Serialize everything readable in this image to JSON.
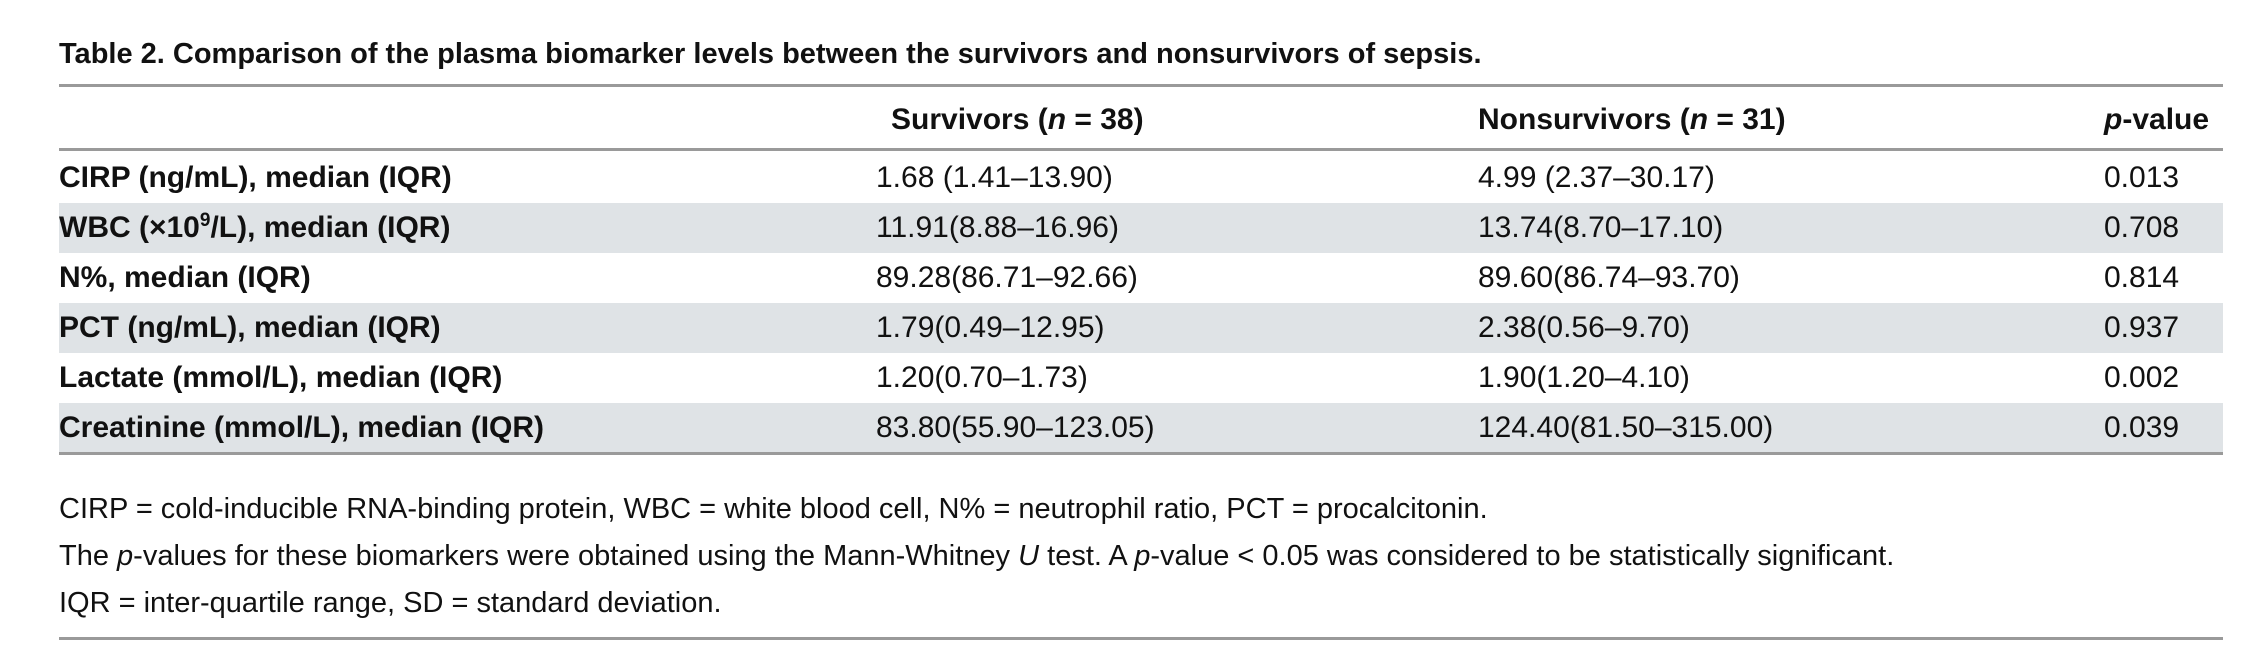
{
  "caption": "Table 2.  Comparison of the plasma biomarker levels between the survivors and nonsurvivors of sepsis.",
  "header": {
    "survivors_prefix": "Survivors (",
    "survivors_n": "n",
    "survivors_suffix": " = 38)",
    "nonsurvivors_prefix": "Nonsurvivors (",
    "nonsurvivors_n": "n",
    "nonsurvivors_suffix": " = 31)",
    "pvalue_p": "p",
    "pvalue_suffix": "-value"
  },
  "rows": [
    {
      "label": "CIRP (ng/mL), median (IQR)",
      "survivors": "1.68 (1.41–13.90)",
      "nonsurvivors": "4.99 (2.37–30.17)",
      "p": "0.013"
    },
    {
      "label_pre": "WBC (×10",
      "label_sup": "9",
      "label_post": "/L), median (IQR)",
      "survivors": "11.91(8.88–16.96)",
      "nonsurvivors": "13.74(8.70–17.10)",
      "p": "0.708"
    },
    {
      "label": "N%, median (IQR)",
      "survivors": "89.28(86.71–92.66)",
      "nonsurvivors": "89.60(86.74–93.70)",
      "p": "0.814"
    },
    {
      "label": "PCT (ng/mL), median (IQR)",
      "survivors": "1.79(0.49–12.95)",
      "nonsurvivors": "2.38(0.56–9.70)",
      "p": "0.937"
    },
    {
      "label": "Lactate (mmol/L), median (IQR)",
      "survivors": "1.20(0.70–1.73)",
      "nonsurvivors": "1.90(1.20–4.10)",
      "p": "0.002"
    },
    {
      "label": "Creatinine (mmol/L), median (IQR)",
      "survivors": "83.80(55.90–123.05)",
      "nonsurvivors": "124.40(81.50–315.00)",
      "p": "0.039"
    }
  ],
  "notes": {
    "abbrev": "CIRP = cold-inducible RNA-binding protein, WBC = white blood cell, N% = neutrophil ratio, PCT = procalcitonin.",
    "stats_1": "The ",
    "stats_p1": "p",
    "stats_2": "-values for these biomarkers were obtained using the Mann-Whitney ",
    "stats_u": "U",
    "stats_3": " test. A ",
    "stats_p2": "p",
    "stats_4": "-value < 0.05 was considered to be statistically significant.",
    "iqr": "IQR = inter-quartile range, SD = standard deviation."
  },
  "colors": {
    "shaded_row": "#dfe3e6",
    "rule": "#9a9a9a"
  }
}
